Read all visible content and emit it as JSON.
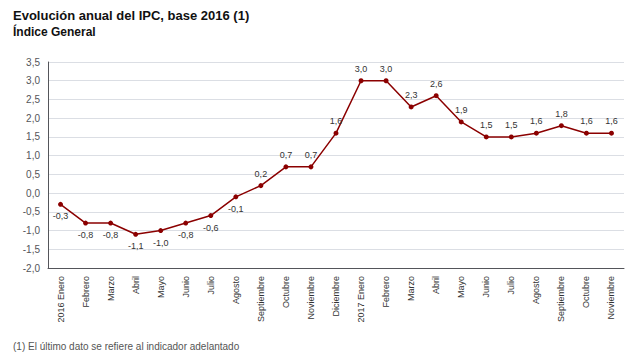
{
  "chart_data": {
    "type": "line",
    "title": "Evolución anual del IPC, base 2016 (1)",
    "subtitle": "Índice General",
    "annotation": "(1) El último dato se refiere al indicador adelantado",
    "categories": [
      "2016 Enero",
      "Febrero",
      "Marzo",
      "Abril",
      "Mayo",
      "Junio",
      "Julio",
      "Agosto",
      "Septiembre",
      "Octubre",
      "Noviembre",
      "Diciembre",
      "2017 Enero",
      "Febrero",
      "Marzo",
      "Abril",
      "Mayo",
      "Junio",
      "Julio",
      "Agosto",
      "Septiembre",
      "Octubre",
      "Noviembre"
    ],
    "values": [
      -0.3,
      -0.8,
      -0.8,
      -1.1,
      -1.0,
      -0.8,
      -0.6,
      -0.1,
      0.2,
      0.7,
      0.7,
      1.6,
      3.0,
      3.0,
      2.3,
      2.6,
      1.9,
      1.5,
      1.5,
      1.6,
      1.8,
      1.6,
      1.6
    ],
    "value_labels": [
      "-0,3",
      "-0,8",
      "-0,8",
      "-1,1",
      "-1,0",
      "-0,8",
      "-0,6",
      "-0,1",
      "0,2",
      "0,7",
      "0,7",
      "1,6",
      "3,0",
      "3,0",
      "2,3",
      "2,6",
      "1,9",
      "1,5",
      "1,5",
      "1,6",
      "1,8",
      "1,6",
      "1,6"
    ],
    "color": "#8B0000",
    "marker": "circle",
    "data_labels": true,
    "grid": true,
    "ylim": [
      -2.0,
      3.5
    ],
    "yticks": [
      {
        "value": -2.0,
        "label": "-2,0"
      },
      {
        "value": -1.5,
        "label": "-1,5"
      },
      {
        "value": -1.0,
        "label": "-1,0"
      },
      {
        "value": -0.5,
        "label": "-0,5"
      },
      {
        "value": 0,
        "label": "0,0"
      },
      {
        "value": 0.5,
        "label": "0,5"
      },
      {
        "value": 1.0,
        "label": "1,0"
      },
      {
        "value": 1.5,
        "label": "1,5"
      },
      {
        "value": 2.0,
        "label": "2,0"
      },
      {
        "value": 2.5,
        "label": "2,5"
      },
      {
        "value": 3.0,
        "label": "3,0"
      },
      {
        "value": 3.5,
        "label": "3,5"
      }
    ]
  }
}
